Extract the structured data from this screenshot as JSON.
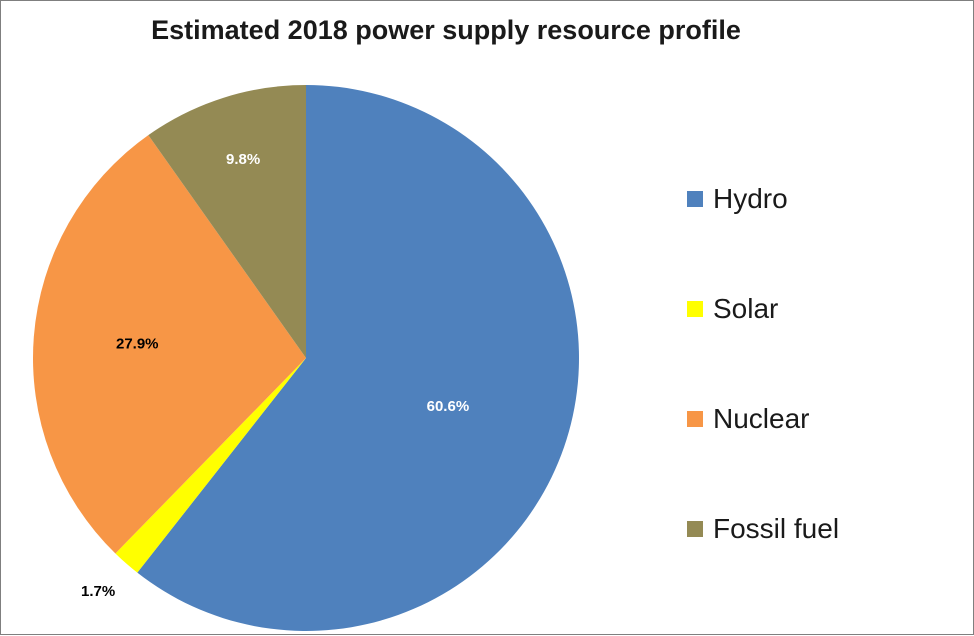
{
  "chart_data": {
    "type": "pie",
    "title": "Estimated 2018 power supply resource profile",
    "legend_position": "right",
    "slices": [
      {
        "name": "Hydro",
        "value": 60.6,
        "label": "60.6%",
        "color": "#4f81bd",
        "label_color": "#ffffff"
      },
      {
        "name": "Solar",
        "value": 1.7,
        "label": "1.7%",
        "color": "#ffff00",
        "label_color": "#000000"
      },
      {
        "name": "Nuclear",
        "value": 27.9,
        "label": "27.9%",
        "color": "#f79646",
        "label_color": "#000000"
      },
      {
        "name": "Fossil fuel",
        "value": 9.8,
        "label": "9.8%",
        "color": "#948a54",
        "label_color": "#ffffff"
      }
    ]
  }
}
